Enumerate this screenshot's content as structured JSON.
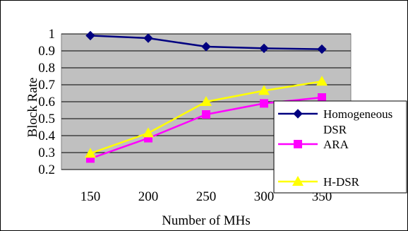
{
  "chart_data": {
    "type": "line",
    "title": "",
    "xlabel": "Number of MHs",
    "ylabel": "Block Rate",
    "categories": [
      "150",
      "200",
      "250",
      "300",
      "350"
    ],
    "ylim": [
      0.2,
      1.0
    ],
    "yticks": [
      "0.2",
      "0.3",
      "0.4",
      "0.5",
      "0.6",
      "0.7",
      "0.8",
      "0.9",
      "1"
    ],
    "grid": true,
    "legend_position": "right",
    "background_color": "#c0c0c0",
    "series": [
      {
        "name": "Homogeneous DSR",
        "values": [
          0.99,
          0.975,
          0.925,
          0.915,
          0.91
        ],
        "color": "#000080",
        "marker": "diamond"
      },
      {
        "name": "ARA",
        "values": [
          0.265,
          0.385,
          0.525,
          0.59,
          0.625
        ],
        "color": "#ff00ff",
        "marker": "square"
      },
      {
        "name": "H-DSR",
        "values": [
          0.295,
          0.415,
          0.6,
          0.665,
          0.72
        ],
        "color": "#ffff00",
        "marker": "triangle"
      }
    ]
  },
  "legend": {
    "entries": [
      {
        "lines": [
          "Homogeneous",
          "DSR"
        ]
      },
      {
        "lines": [
          "ARA"
        ]
      },
      {
        "lines": [
          "H-DSR"
        ]
      }
    ]
  }
}
